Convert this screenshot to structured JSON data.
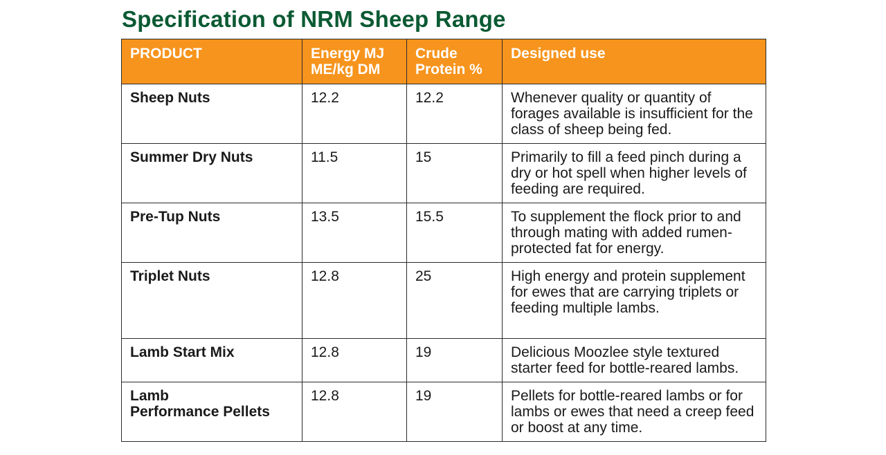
{
  "title": "Specification of NRM Sheep Range",
  "colors": {
    "title": "#0b5a33",
    "header_background": "#f7941d",
    "header_text": "#ffffff",
    "border": "#2a2a2a"
  },
  "table": {
    "headers": [
      "PRODUCT",
      "Energy MJ\nME/kg DM",
      "Crude\nProtein %",
      "Designed use"
    ],
    "rows": [
      {
        "product": "Sheep Nuts",
        "energy": "12.2",
        "protein": "12.2",
        "use": "Whenever quality or quantity of forages available is insufficient for the class of sheep being fed."
      },
      {
        "product": "Summer Dry Nuts",
        "energy": "11.5",
        "protein": "15",
        "use": "Primarily to fill a feed pinch during a dry or hot spell when higher levels of feeding are required."
      },
      {
        "product": "Pre-Tup Nuts",
        "energy": "13.5",
        "protein": "15.5",
        "use": "To supplement the flock prior to and through mating with added rumen-protected fat for energy."
      },
      {
        "product": "Triplet Nuts",
        "energy": "12.8",
        "protein": "25",
        "use": "High energy and protein supplement for ewes that are carrying triplets or feeding multiple lambs."
      },
      {
        "product": "Lamb Start Mix",
        "energy": "12.8",
        "protein": "19",
        "use": "Delicious Moozlee style textured starter feed for bottle-reared lambs."
      },
      {
        "product": "Lamb\nPerformance Pellets",
        "energy": "12.8",
        "protein": "19",
        "use": "Pellets for bottle-reared lambs or for lambs or ewes that need a creep feed or boost at any time."
      }
    ]
  }
}
